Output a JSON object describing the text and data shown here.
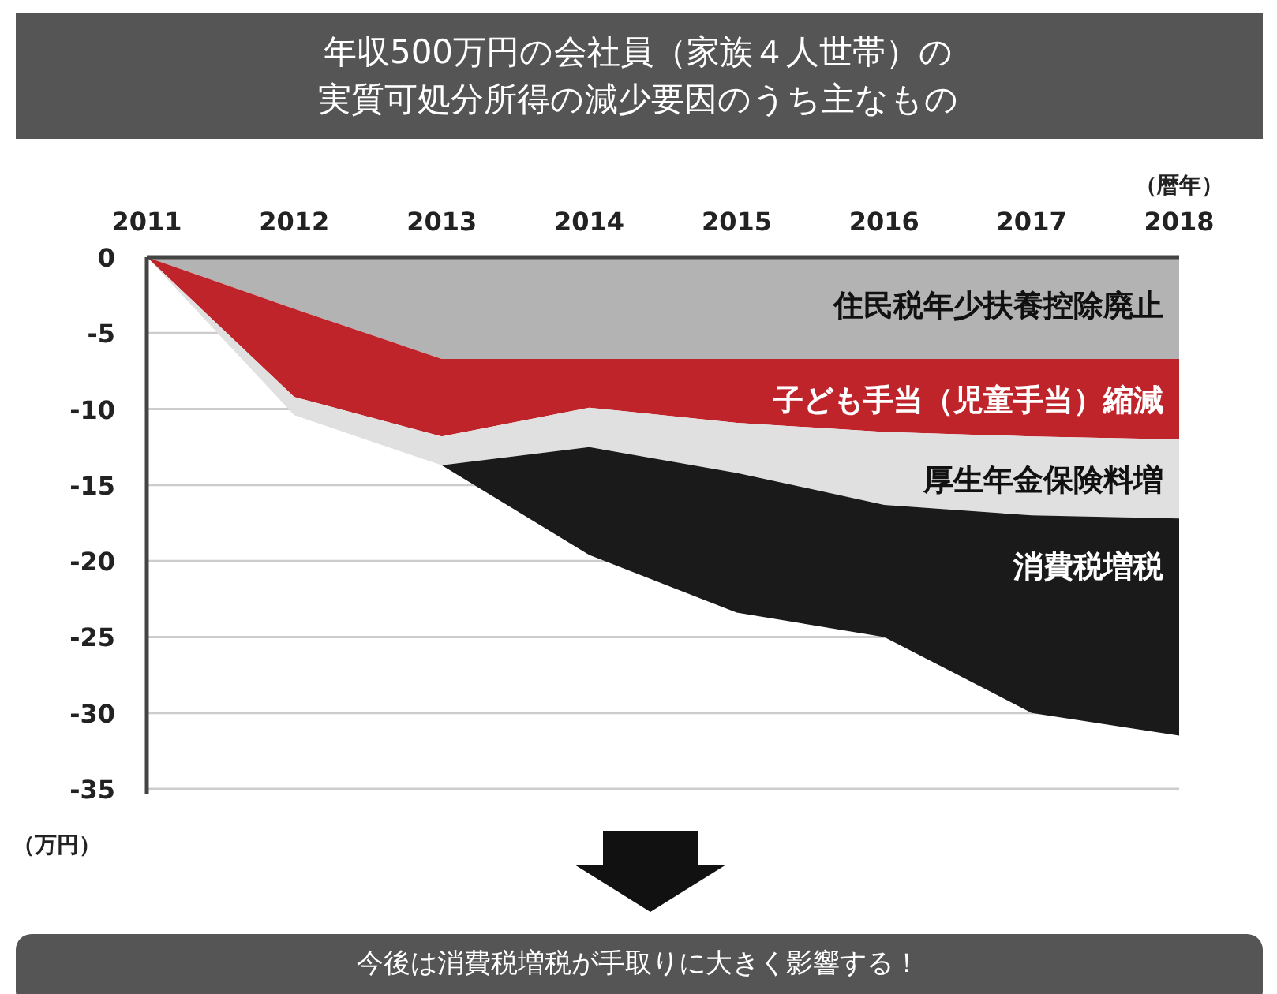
{
  "chart_data": {
    "type": "area",
    "stacked": true,
    "title": "年収500万円の会社員（家族４人世帯）の",
    "subtitle": "実質可処分所得の減少要因のうち主なもの",
    "xlabel": "（暦年）",
    "ylabel": "（万円）",
    "x": [
      2011,
      2012,
      2013,
      2014,
      2015,
      2016,
      2017,
      2018
    ],
    "xlim": [
      2011,
      2018
    ],
    "xticks": [
      2011,
      2012,
      2013,
      2014,
      2015,
      2016,
      2017,
      2018
    ],
    "ylim": [
      -35,
      0
    ],
    "yticks": [
      0,
      -5,
      -10,
      -15,
      -20,
      -25,
      -30,
      -35
    ],
    "grid": "y",
    "series": [
      {
        "name": "住民税年少扶養控除廃止",
        "color": "#b3b3b3",
        "values": [
          0,
          -3.4,
          -6.7,
          -6.7,
          -6.7,
          -6.7,
          -6.7,
          -6.7
        ]
      },
      {
        "name": "子ども手当（児童手当）縮減",
        "color": "#c0242b",
        "values": [
          0,
          -5.8,
          -5.1,
          -3.2,
          -4.2,
          -4.8,
          -5.1,
          -5.3
        ]
      },
      {
        "name": "厚生年金保険料増",
        "color": "#e0e0e0",
        "values": [
          0,
          -1.2,
          -1.9,
          -2.6,
          -3.3,
          -4.8,
          -5.2,
          -5.2
        ]
      },
      {
        "name": "消費税増税",
        "color": "#1a1a1a",
        "values": [
          0,
          0,
          0,
          -7.1,
          -9.2,
          -8.7,
          -13.0,
          -14.3
        ]
      }
    ],
    "annotations": [
      "今後は消費税増税が手取りに大きく影響する！"
    ]
  }
}
